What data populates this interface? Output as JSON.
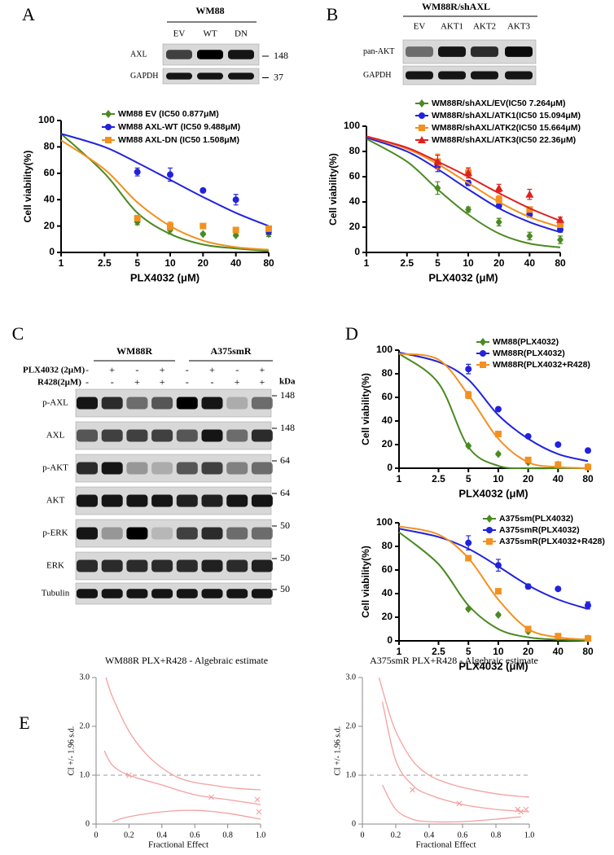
{
  "panels": [
    "A",
    "B",
    "C",
    "D",
    "E"
  ],
  "blots": [
    {
      "header": "WM88",
      "lanes": [
        "EV",
        "WT",
        "DN"
      ],
      "rows": [
        {
          "label": "AXL",
          "marker": 148,
          "bands": [
            0.7,
            1,
            0.9
          ]
        },
        {
          "label": "GAPDH",
          "marker": 37,
          "bands": [
            0.9,
            0.9,
            0.9
          ]
        }
      ]
    },
    {
      "header": "WM88R/shAXL",
      "lanes": [
        "EV",
        "AKT1",
        "AKT2",
        "AKT3"
      ],
      "rows": [
        {
          "label": "pan-AKT",
          "bands": [
            0.5,
            0.9,
            0.8,
            0.95
          ]
        },
        {
          "label": "GAPDH",
          "bands": [
            0.9,
            0.9,
            0.9,
            0.9
          ]
        }
      ]
    },
    {
      "groups": [
        "WM88R",
        "A375smR"
      ],
      "treatments": [
        {
          "label": "PLX4032 (2μM)",
          "signs": [
            "-",
            "+",
            "-",
            "+",
            "-",
            "+",
            "-",
            "+"
          ]
        },
        {
          "label": "R428(2μM)",
          "signs": [
            "-",
            "-",
            "+",
            "+",
            "-",
            "-",
            "+",
            "+"
          ]
        }
      ],
      "unit": "kDa",
      "rows": [
        {
          "label": "p-AXL",
          "marker": 148,
          "bands": [
            0.9,
            0.8,
            0.5,
            0.6,
            1,
            0.9,
            0.2,
            0.5
          ]
        },
        {
          "label": "AXL",
          "marker": 148,
          "bands": [
            0.6,
            0.7,
            0.7,
            0.7,
            0.6,
            0.9,
            0.5,
            0.8
          ]
        },
        {
          "label": "p-AKT",
          "marker": 64,
          "bands": [
            0.8,
            0.9,
            0.3,
            0.2,
            0.6,
            0.7,
            0.4,
            0.5
          ]
        },
        {
          "label": "AKT",
          "marker": 64,
          "bands": [
            0.9,
            0.9,
            0.9,
            0.9,
            0.85,
            0.85,
            0.9,
            0.9
          ]
        },
        {
          "label": "p-ERK",
          "marker": 50,
          "bands": [
            0.9,
            0.3,
            1,
            0.15,
            0.7,
            0.8,
            0.5,
            0.5
          ]
        },
        {
          "label": "ERK",
          "marker": 50,
          "bands": [
            0.8,
            0.8,
            0.8,
            0.8,
            0.8,
            0.85,
            0.8,
            0.85
          ]
        },
        {
          "label": "Tubulin",
          "marker": 50,
          "bands": [
            0.9,
            0.9,
            0.9,
            0.9,
            0.9,
            0.9,
            0.9,
            0.9
          ]
        }
      ]
    }
  ],
  "chart_data": [
    {
      "type": "line",
      "xlabel": "PLX4032 (μM)",
      "ylabel": "Cell viability(%)",
      "xscale": "log",
      "xlim": [
        1,
        80
      ],
      "ylim": [
        0,
        100
      ],
      "xticks": [
        1,
        2.5,
        5,
        10,
        20,
        40,
        80
      ],
      "yticks": [
        0,
        20,
        40,
        60,
        80,
        100
      ],
      "x": [
        5,
        10,
        20,
        40,
        80
      ],
      "fit_x": [
        1,
        2.5,
        5,
        10,
        20,
        40,
        80
      ],
      "series": [
        {
          "name": "WM88 EV (IC50 0.877μM)",
          "color": "#4a8a22",
          "marker": "diamond",
          "values": [
            23,
            17,
            14,
            13,
            14
          ],
          "errors": [
            2,
            3,
            1,
            1,
            2
          ],
          "fit": [
            90,
            60,
            30,
            14,
            6,
            3,
            1
          ]
        },
        {
          "name": "WM88 AXL-WT (IC50 9.488μM)",
          "color": "#2222dd",
          "marker": "circle",
          "values": [
            61,
            59,
            47,
            40,
            16
          ],
          "errors": [
            3,
            5,
            1,
            4,
            2
          ],
          "fit": [
            90,
            80,
            68,
            55,
            42,
            30,
            20
          ]
        },
        {
          "name": "WM88 AXL-DN (IC50 1.508μM)",
          "color": "#f39020",
          "marker": "square",
          "values": [
            26,
            20,
            20,
            17,
            18
          ],
          "errors": [
            2,
            3,
            1,
            2,
            2
          ],
          "fit": [
            85,
            63,
            38,
            20,
            9,
            4,
            2
          ]
        }
      ]
    },
    {
      "type": "line",
      "xlabel": "PLX4032 (μM)",
      "ylabel": "Cell viability(%)",
      "xscale": "log",
      "xlim": [
        1,
        80
      ],
      "ylim": [
        0,
        100
      ],
      "xticks": [
        1,
        2.5,
        5,
        10,
        20,
        40,
        80
      ],
      "yticks": [
        0,
        20,
        40,
        60,
        80,
        100
      ],
      "x": [
        5,
        10,
        20,
        40,
        80
      ],
      "fit_x": [
        1,
        2.5,
        5,
        10,
        20,
        40,
        80
      ],
      "series": [
        {
          "name": "WM88R/shAXL/EV(IC50 7.264μM)",
          "color": "#4a8a22",
          "marker": "diamond",
          "values": [
            51,
            34,
            24,
            13,
            10
          ],
          "errors": [
            5,
            2,
            3,
            3,
            3
          ],
          "fit": [
            90,
            72,
            50,
            30,
            15,
            7,
            4
          ]
        },
        {
          "name": "WM88R/shAXL/ATK1(IC50 15.094μM)",
          "color": "#2222dd",
          "marker": "circle",
          "values": [
            68,
            55,
            37,
            30,
            18
          ],
          "errors": [
            4,
            2,
            2,
            2,
            2
          ],
          "fit": [
            91,
            80,
            66,
            50,
            35,
            24,
            16
          ]
        },
        {
          "name": "WM88R/shAXL/ATK2(IC50 15.664μM)",
          "color": "#f39020",
          "marker": "square",
          "values": [
            72,
            63,
            42,
            34,
            22
          ],
          "errors": [
            6,
            3,
            3,
            2,
            2
          ],
          "fit": [
            92,
            82,
            70,
            55,
            40,
            28,
            20
          ]
        },
        {
          "name": "WM88R/shAXL/ATK3(IC50 22.36μM)",
          "color": "#e02020",
          "marker": "triangle",
          "values": [
            72,
            63,
            51,
            46,
            26
          ],
          "errors": [
            5,
            4,
            3,
            4,
            2
          ],
          "fit": [
            92,
            83,
            72,
            60,
            47,
            35,
            25
          ]
        }
      ]
    },
    {
      "type": "line",
      "xlabel": "PLX4032 (μM)",
      "ylabel": "Cell viability(%)",
      "xscale": "log",
      "xlim": [
        1,
        80
      ],
      "ylim": [
        0,
        100
      ],
      "xticks": [
        1,
        2.5,
        5,
        10,
        20,
        40,
        80
      ],
      "yticks": [
        0,
        20,
        40,
        60,
        80,
        100
      ],
      "x": [
        5,
        10,
        20,
        40,
        80
      ],
      "fit_x": [
        1,
        2.5,
        5,
        10,
        20,
        40,
        80
      ],
      "series": [
        {
          "name": "WM88(PLX4032)",
          "color": "#4a8a22",
          "marker": "diamond",
          "values": [
            19,
            12,
            5,
            3,
            1
          ],
          "errors": [
            1,
            1,
            1,
            2,
            1
          ],
          "fit": [
            97,
            72,
            18,
            2,
            0,
            0,
            0
          ]
        },
        {
          "name": "WM88R(PLX4032)",
          "color": "#2222dd",
          "marker": "circle",
          "values": [
            84,
            50,
            27,
            20,
            15
          ],
          "errors": [
            4,
            1,
            1,
            1,
            1
          ],
          "fit": [
            98,
            90,
            75,
            45,
            25,
            12,
            6
          ]
        },
        {
          "name": "WM88R(PLX4032+R428)",
          "color": "#f39020",
          "marker": "square",
          "values": [
            62,
            29,
            7,
            3,
            1
          ],
          "errors": [
            3,
            2,
            1,
            1,
            1
          ],
          "fit": [
            97,
            92,
            62,
            25,
            5,
            1,
            0
          ]
        }
      ]
    },
    {
      "type": "line",
      "xlabel": "PLX4032 (μM)",
      "ylabel": "Cell viability(%)",
      "xscale": "log",
      "xlim": [
        1,
        80
      ],
      "ylim": [
        0,
        100
      ],
      "xticks": [
        1,
        2.5,
        5,
        10,
        20,
        40,
        80
      ],
      "yticks": [
        0,
        20,
        40,
        60,
        80,
        100
      ],
      "x": [
        5,
        10,
        20,
        40,
        80
      ],
      "fit_x": [
        1,
        2.5,
        5,
        10,
        20,
        40,
        80
      ],
      "series": [
        {
          "name": "A375sm(PLX4032)",
          "color": "#4a8a22",
          "marker": "diamond",
          "values": [
            27,
            22,
            8,
            3,
            2
          ],
          "errors": [
            1,
            1,
            1,
            1,
            1
          ],
          "fit": [
            92,
            65,
            30,
            10,
            3,
            1,
            0
          ]
        },
        {
          "name": "A375smR(PLX4032)",
          "color": "#2222dd",
          "marker": "circle",
          "values": [
            83,
            64,
            46,
            44,
            30
          ],
          "errors": [
            6,
            5,
            2,
            1,
            3
          ],
          "fit": [
            95,
            88,
            78,
            63,
            47,
            35,
            27
          ]
        },
        {
          "name": "A375smR(PLX4032+R428)",
          "color": "#f39020",
          "marker": "square",
          "values": [
            70,
            42,
            10,
            4,
            2
          ],
          "errors": [
            2,
            2,
            1,
            1,
            1
          ],
          "fit": [
            97,
            90,
            70,
            35,
            10,
            3,
            1
          ]
        }
      ]
    },
    {
      "type": "scatter",
      "title": "WM88R PLX+R428 - Algebraic estimate",
      "xlabel": "Fractional Effect",
      "ylabel": "CI +/- 1.96 s.d.",
      "xlim": [
        0,
        1
      ],
      "ylim": [
        0,
        3
      ],
      "xticks": [
        0,
        0.2,
        0.4,
        0.6,
        0.8,
        {
          "value": 1,
          "label": "1.0"
        }
      ],
      "yticks": [
        0,
        {
          "value": 1,
          "label": "1.0"
        },
        {
          "value": 2,
          "label": "2.0"
        },
        {
          "value": 3,
          "label": "3.0"
        }
      ],
      "ref_line": 1,
      "color": "#f4a0a0",
      "curves": [
        {
          "x": [
            0.06,
            0.1,
            0.2,
            0.3,
            0.4,
            0.5,
            0.6,
            0.7,
            0.8,
            0.9,
            1.0
          ],
          "y": [
            3.0,
            2.6,
            1.9,
            1.45,
            1.15,
            0.95,
            0.85,
            0.8,
            0.75,
            0.72,
            0.7
          ]
        },
        {
          "x": [
            0.05,
            0.1,
            0.2,
            0.4,
            0.6,
            0.8,
            1.0
          ],
          "y": [
            1.5,
            1.2,
            1.0,
            0.8,
            0.6,
            0.5,
            0.4
          ]
        },
        {
          "x": [
            0.1,
            0.2,
            0.4,
            0.6,
            0.8,
            1.0
          ],
          "y": [
            0.05,
            0.15,
            0.25,
            0.28,
            0.22,
            0.1
          ]
        }
      ],
      "points": {
        "x": [
          0.2,
          0.7,
          0.98,
          0.99
        ],
        "y": [
          1.0,
          0.55,
          0.5,
          0.25
        ]
      }
    },
    {
      "type": "scatter",
      "title": "A375smR PLX+R428 - Algebraic estimate",
      "xlabel": "Fractional Effect",
      "ylabel": "CI +/- 1.96 s.d.",
      "xlim": [
        0,
        1
      ],
      "ylim": [
        0,
        3
      ],
      "xticks": [
        0,
        0.2,
        0.4,
        0.6,
        0.8,
        {
          "value": 1,
          "label": "1.0"
        }
      ],
      "yticks": [
        0,
        {
          "value": 1,
          "label": "1.0"
        },
        {
          "value": 2,
          "label": "2.0"
        },
        {
          "value": 3,
          "label": "3.0"
        }
      ],
      "ref_line": 1,
      "color": "#f4a0a0",
      "curves": [
        {
          "x": [
            0.1,
            0.15,
            0.2,
            0.3,
            0.4,
            0.5,
            0.6,
            0.7,
            0.8,
            0.9,
            1.0
          ],
          "y": [
            3.0,
            2.4,
            1.9,
            1.3,
            1.0,
            0.85,
            0.75,
            0.68,
            0.62,
            0.58,
            0.55
          ]
        },
        {
          "x": [
            0.12,
            0.2,
            0.3,
            0.4,
            0.6,
            0.8,
            1.0
          ],
          "y": [
            2.5,
            1.3,
            0.8,
            0.6,
            0.4,
            0.3,
            0.25
          ]
        },
        {
          "x": [
            0.12,
            0.2,
            0.3,
            0.4,
            0.6,
            0.8,
            0.95
          ],
          "y": [
            0.8,
            0.3,
            0.1,
            0.05,
            0.05,
            0.1,
            0.15
          ]
        }
      ],
      "points": {
        "x": [
          0.3,
          0.58,
          0.93,
          0.95,
          0.98
        ],
        "y": [
          0.7,
          0.42,
          0.3,
          0.25,
          0.3
        ]
      }
    }
  ]
}
